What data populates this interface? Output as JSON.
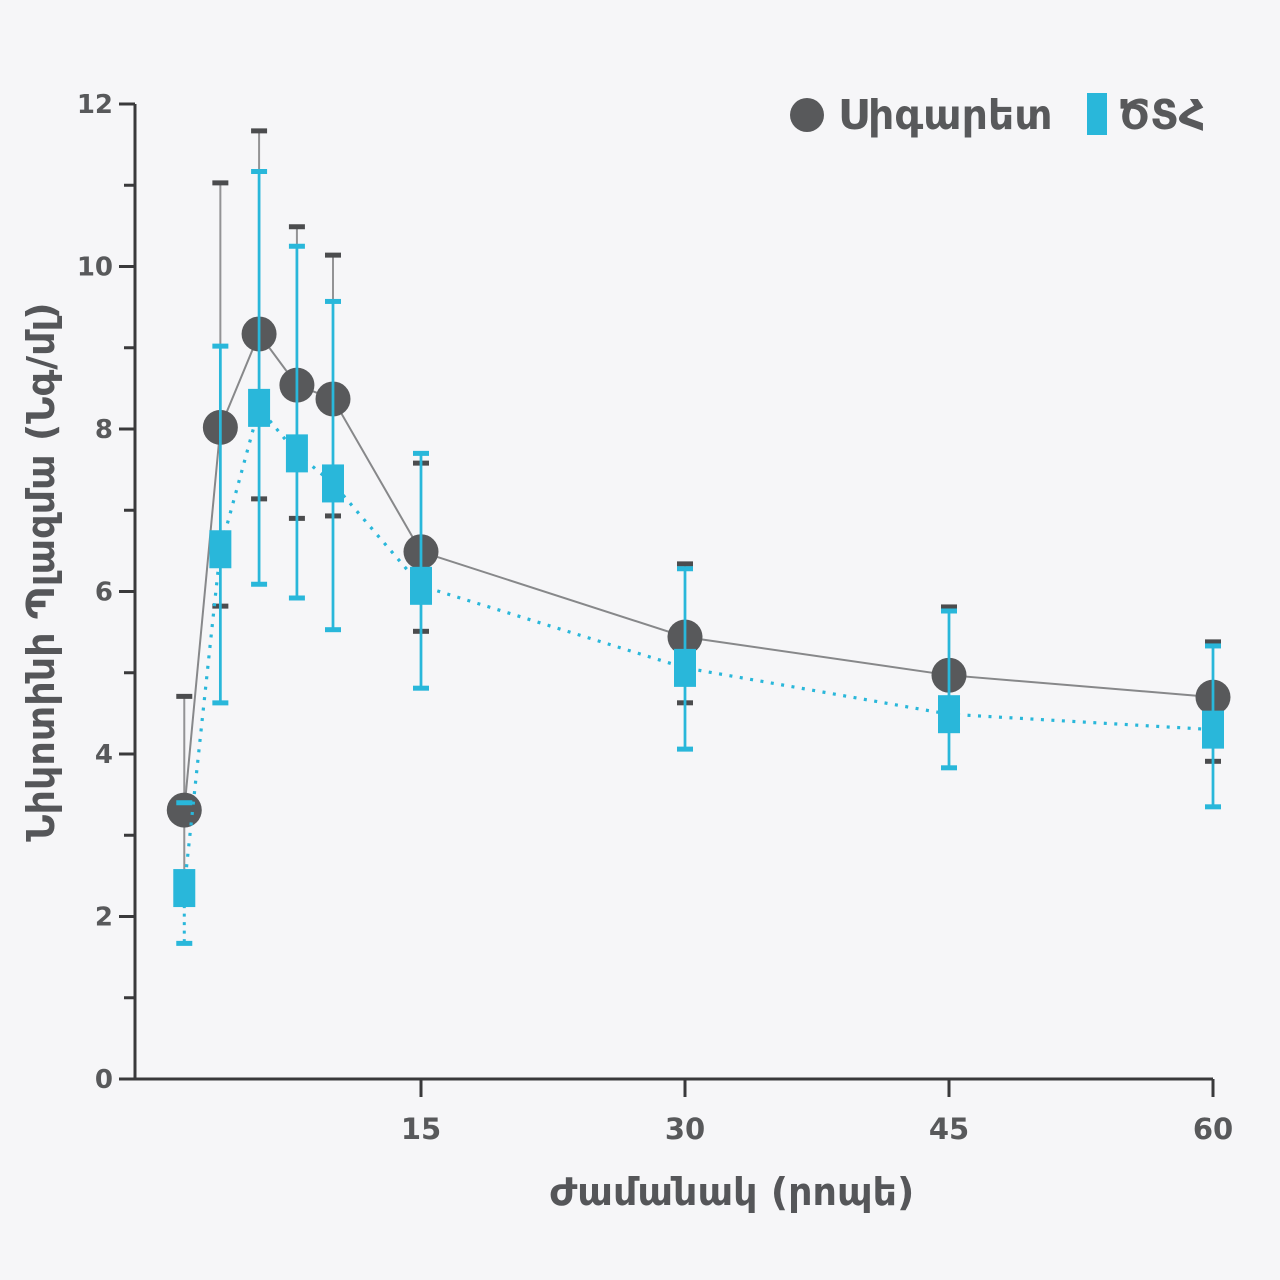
{
  "background": "#f6f6f8",
  "colors": {
    "cigarette_marker": "#58595b",
    "cigarette_line": "#87888a",
    "cigarette_err_line": "#939395",
    "cigarette_cap": "#4b4c4e",
    "hts_color": "#29b7da",
    "axis": "#39393b",
    "tick_label": "#58595b",
    "axis_title": "#555659"
  },
  "legend": {
    "items": [
      {
        "label": "Սիգարետ",
        "marker": "circle"
      },
      {
        "label": "ԾՏՀ",
        "marker": "square"
      }
    ]
  },
  "chart_data": {
    "type": "line",
    "title": "",
    "xlabel": "Ժամանակ (րոպե)",
    "ylabel": "Նիկոտինի Պլազմա (Նգ/մլ)",
    "x": [
      2,
      4,
      6,
      8,
      10,
      15,
      30,
      45,
      60
    ],
    "x_plot": [
      1.55,
      3.6,
      5.8,
      7.95,
      10,
      15,
      30,
      45,
      60
    ],
    "xticks": [
      15,
      30,
      45,
      60
    ],
    "yticks": [
      12,
      10,
      8,
      6,
      4,
      2,
      0
    ],
    "yticks_minor": [
      11,
      9,
      7,
      5,
      3,
      1
    ],
    "xlim": [
      0,
      60
    ],
    "ylim": [
      0,
      12
    ],
    "grid": false,
    "legend_position": "top-right",
    "series": [
      {
        "name": "Սիգարետ",
        "marker": "circle",
        "line_style": "solid",
        "values": [
          3.31,
          8.02,
          9.17,
          8.54,
          8.37,
          6.49,
          5.44,
          4.97,
          4.7
        ],
        "err_hi": [
          4.71,
          11.03,
          11.67,
          10.49,
          10.14,
          7.58,
          6.34,
          5.81,
          5.38
        ],
        "err_lo": [
          2.45,
          5.82,
          7.14,
          6.9,
          6.93,
          5.51,
          4.63,
          4.35,
          3.91
        ]
      },
      {
        "name": "ԾՏՀ",
        "marker": "square",
        "line_style": "dotted",
        "values": [
          2.35,
          6.52,
          8.26,
          7.7,
          7.33,
          6.07,
          5.06,
          4.49,
          4.3
        ],
        "err_hi": [
          3.4,
          9.02,
          11.17,
          10.25,
          9.57,
          7.7,
          6.28,
          5.76,
          5.33
        ],
        "err_lo": [
          1.67,
          4.63,
          6.09,
          5.92,
          5.53,
          4.81,
          4.06,
          3.83,
          3.35
        ],
        "err_style": [
          "dotted_lo_only",
          "solid",
          "solid",
          "solid",
          "solid",
          "solid",
          "solid",
          "solid",
          "solid"
        ]
      }
    ]
  }
}
